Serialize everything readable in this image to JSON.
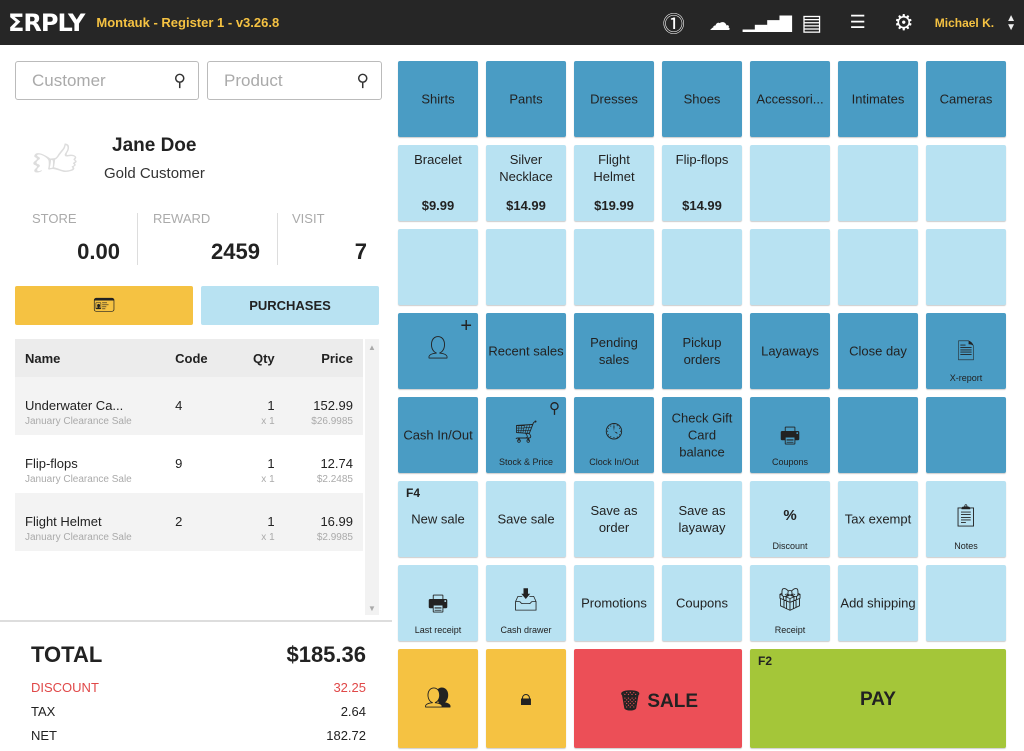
{
  "header": {
    "logo": "ΣRPLY",
    "title": "Montauk - Register 1 - v3.26.8",
    "user": "Michael K.",
    "icons": [
      "alert-icon",
      "cloud-icon",
      "signal-icon",
      "archive-icon",
      "list-icon",
      "gear-icon"
    ]
  },
  "search": {
    "customer_placeholder": "Customer",
    "product_placeholder": "Product"
  },
  "customer": {
    "name": "Jane Doe",
    "tier": "Gold Customer",
    "stats": [
      {
        "label": "STORE",
        "value": "0.00"
      },
      {
        "label": "REWARD",
        "value": "2459"
      },
      {
        "label": "VISIT",
        "value": "7"
      }
    ]
  },
  "buttons": {
    "purchases": "PURCHASES"
  },
  "cart": {
    "headers": [
      "Name",
      "Code",
      "Qty",
      "Price"
    ],
    "rows": [
      {
        "name": "Underwater Ca...",
        "code": "4",
        "qty": "1",
        "price": "152.99",
        "promo": "January Clearance Sale",
        "mult": "x 1",
        "unit": "$26.9985"
      },
      {
        "name": "Flip-flops",
        "code": "9",
        "qty": "1",
        "price": "12.74",
        "promo": "January Clearance Sale",
        "mult": "x 1",
        "unit": "$2.2485"
      },
      {
        "name": "Flight Helmet",
        "code": "2",
        "qty": "1",
        "price": "16.99",
        "promo": "January Clearance Sale",
        "mult": "x 1",
        "unit": "$2.9985"
      }
    ]
  },
  "totals": {
    "total_label": "TOTAL",
    "total": "$185.36",
    "discount_label": "DISCOUNT",
    "discount": "32.25",
    "tax_label": "TAX",
    "tax": "2.64",
    "net_label": "NET",
    "net": "182.72"
  },
  "colors": {
    "dark": "#4a9cc4",
    "light": "#b8e2f2",
    "yellow": "#f5c242",
    "red": "#ec4f57",
    "green": "#a4c639",
    "discount": "#e04848"
  },
  "tiles": [
    {
      "r": 0,
      "c": 0,
      "t": "dark",
      "label": "Shirts"
    },
    {
      "r": 0,
      "c": 1,
      "t": "dark",
      "label": "Pants"
    },
    {
      "r": 0,
      "c": 2,
      "t": "dark",
      "label": "Dresses"
    },
    {
      "r": 0,
      "c": 3,
      "t": "dark",
      "label": "Shoes"
    },
    {
      "r": 0,
      "c": 4,
      "t": "dark",
      "label": "Accessori..."
    },
    {
      "r": 0,
      "c": 5,
      "t": "dark",
      "label": "Intimates"
    },
    {
      "r": 0,
      "c": 6,
      "t": "dark",
      "label": "Cameras"
    },
    {
      "r": 1,
      "c": 0,
      "t": "light",
      "top": "Bracelet",
      "price": "$9.99"
    },
    {
      "r": 1,
      "c": 1,
      "t": "light",
      "top": "Silver Necklace",
      "price": "$14.99"
    },
    {
      "r": 1,
      "c": 2,
      "t": "light",
      "top": "Flight Helmet",
      "price": "$19.99"
    },
    {
      "r": 1,
      "c": 3,
      "t": "light",
      "top": "Flip-flops",
      "price": "$14.99"
    },
    {
      "r": 1,
      "c": 4,
      "t": "light"
    },
    {
      "r": 1,
      "c": 5,
      "t": "light"
    },
    {
      "r": 1,
      "c": 6,
      "t": "light"
    },
    {
      "r": 2,
      "c": 0,
      "t": "light"
    },
    {
      "r": 2,
      "c": 1,
      "t": "light"
    },
    {
      "r": 2,
      "c": 2,
      "t": "light"
    },
    {
      "r": 2,
      "c": 3,
      "t": "light"
    },
    {
      "r": 2,
      "c": 4,
      "t": "light"
    },
    {
      "r": 2,
      "c": 5,
      "t": "light"
    },
    {
      "r": 2,
      "c": 6,
      "t": "light"
    },
    {
      "r": 3,
      "c": 0,
      "t": "dark",
      "icon": "add-customer-icon"
    },
    {
      "r": 3,
      "c": 1,
      "t": "dark",
      "label": "Recent sales"
    },
    {
      "r": 3,
      "c": 2,
      "t": "dark",
      "label": "Pending sales"
    },
    {
      "r": 3,
      "c": 3,
      "t": "dark",
      "label": "Pickup orders"
    },
    {
      "r": 3,
      "c": 4,
      "t": "dark",
      "label": "Layaways"
    },
    {
      "r": 3,
      "c": 5,
      "t": "dark",
      "label": "Close day"
    },
    {
      "r": 3,
      "c": 6,
      "t": "dark",
      "icon": "report-icon",
      "small": "X-report"
    },
    {
      "r": 4,
      "c": 0,
      "t": "dark",
      "label": "Cash In/Out"
    },
    {
      "r": 4,
      "c": 1,
      "t": "dark",
      "icon": "cart-icon",
      "small": "Stock & Price"
    },
    {
      "r": 4,
      "c": 2,
      "t": "dark",
      "icon": "clock-icon",
      "small": "Clock In/Out"
    },
    {
      "r": 4,
      "c": 3,
      "t": "dark",
      "label": "Check Gift Card balance"
    },
    {
      "r": 4,
      "c": 4,
      "t": "dark",
      "icon": "printer-icon",
      "small": "Coupons"
    },
    {
      "r": 4,
      "c": 5,
      "t": "dark"
    },
    {
      "r": 4,
      "c": 6,
      "t": "dark"
    },
    {
      "r": 5,
      "c": 0,
      "t": "light",
      "fkey": "F4",
      "label": "New sale"
    },
    {
      "r": 5,
      "c": 1,
      "t": "light",
      "label": "Save sale"
    },
    {
      "r": 5,
      "c": 2,
      "t": "light",
      "label": "Save as order"
    },
    {
      "r": 5,
      "c": 3,
      "t": "light",
      "label": "Save as layaway"
    },
    {
      "r": 5,
      "c": 4,
      "t": "light",
      "icon": "percent-icon",
      "small": "Discount"
    },
    {
      "r": 5,
      "c": 5,
      "t": "light",
      "label": "Tax exempt"
    },
    {
      "r": 5,
      "c": 6,
      "t": "light",
      "icon": "clipboard-icon",
      "small": "Notes"
    },
    {
      "r": 6,
      "c": 0,
      "t": "light",
      "icon": "printer-icon",
      "small": "Last receipt"
    },
    {
      "r": 6,
      "c": 1,
      "t": "light",
      "icon": "drawer-icon",
      "small": "Cash drawer"
    },
    {
      "r": 6,
      "c": 2,
      "t": "light",
      "label": "Promotions"
    },
    {
      "r": 6,
      "c": 3,
      "t": "light",
      "label": "Coupons"
    },
    {
      "r": 6,
      "c": 4,
      "t": "light",
      "icon": "gift-icon",
      "small": "Receipt"
    },
    {
      "r": 6,
      "c": 5,
      "t": "light",
      "label": "Add shipping"
    },
    {
      "r": 6,
      "c": 6,
      "t": "light"
    }
  ],
  "actions": {
    "sale": "SALE",
    "pay": "PAY",
    "pay_key": "F2"
  }
}
